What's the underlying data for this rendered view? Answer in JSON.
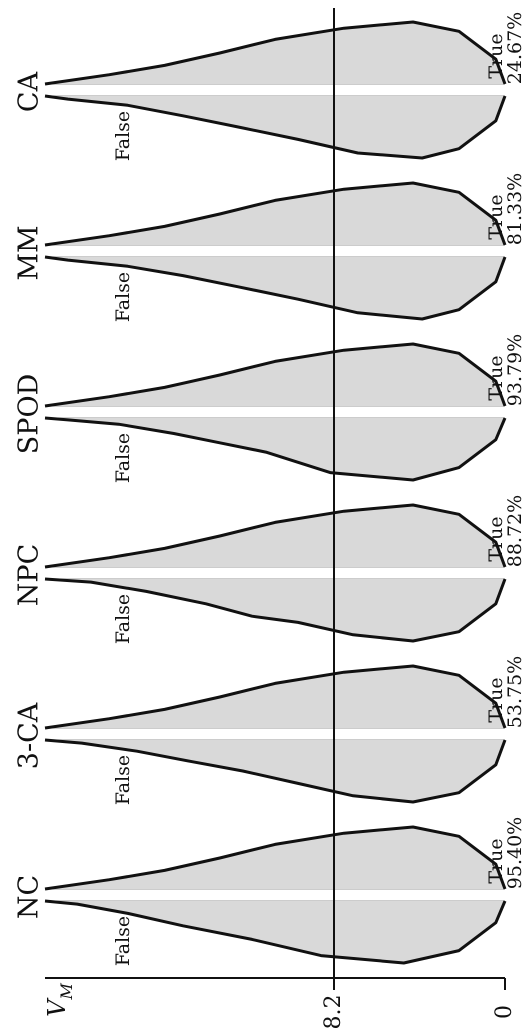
{
  "chart_data": {
    "type": "area",
    "orientation": "rotated-90-ccw",
    "axis_label": "V_M",
    "axis_label_main": "V",
    "axis_label_sub": "M",
    "ticks": [
      "0",
      "8.2"
    ],
    "threshold_label": "8.2",
    "groups": [
      {
        "name": "CA",
        "accuracy": "24.67%",
        "true_label": "True",
        "false_label": "False",
        "true_curve": [
          [
            0.0,
            0.0
          ],
          [
            0.02,
            0.4
          ],
          [
            0.1,
            0.85
          ],
          [
            0.2,
            1.0
          ],
          [
            0.35,
            0.9
          ],
          [
            0.5,
            0.72
          ],
          [
            0.62,
            0.5
          ],
          [
            0.74,
            0.3
          ],
          [
            0.86,
            0.15
          ],
          [
            1.0,
            0.0
          ]
        ],
        "false_curve": [
          [
            0.0,
            0.0
          ],
          [
            0.02,
            0.4
          ],
          [
            0.1,
            0.85
          ],
          [
            0.18,
            1.0
          ],
          [
            0.32,
            0.92
          ],
          [
            0.45,
            0.7
          ],
          [
            0.58,
            0.5
          ],
          [
            0.7,
            0.32
          ],
          [
            0.82,
            0.15
          ],
          [
            0.95,
            0.05
          ],
          [
            1.0,
            0.0
          ]
        ]
      },
      {
        "name": "MM",
        "accuracy": "81.33%",
        "true_label": "True",
        "false_label": "False",
        "true_curve": [
          [
            0.0,
            0.0
          ],
          [
            0.02,
            0.4
          ],
          [
            0.1,
            0.85
          ],
          [
            0.2,
            1.0
          ],
          [
            0.35,
            0.9
          ],
          [
            0.5,
            0.72
          ],
          [
            0.62,
            0.5
          ],
          [
            0.74,
            0.3
          ],
          [
            0.86,
            0.15
          ],
          [
            1.0,
            0.0
          ]
        ],
        "false_curve": [
          [
            0.0,
            0.0
          ],
          [
            0.02,
            0.4
          ],
          [
            0.1,
            0.85
          ],
          [
            0.18,
            1.0
          ],
          [
            0.32,
            0.9
          ],
          [
            0.45,
            0.68
          ],
          [
            0.58,
            0.48
          ],
          [
            0.7,
            0.3
          ],
          [
            0.82,
            0.15
          ],
          [
            0.95,
            0.05
          ],
          [
            1.0,
            0.0
          ]
        ]
      },
      {
        "name": "SPOD",
        "accuracy": "93.79%",
        "true_label": "True",
        "false_label": "False",
        "true_curve": [
          [
            0.0,
            0.0
          ],
          [
            0.02,
            0.4
          ],
          [
            0.1,
            0.85
          ],
          [
            0.2,
            1.0
          ],
          [
            0.35,
            0.9
          ],
          [
            0.5,
            0.72
          ],
          [
            0.62,
            0.5
          ],
          [
            0.74,
            0.3
          ],
          [
            0.86,
            0.15
          ],
          [
            1.0,
            0.0
          ]
        ],
        "false_curve": [
          [
            0.0,
            0.0
          ],
          [
            0.02,
            0.35
          ],
          [
            0.1,
            0.8
          ],
          [
            0.2,
            1.0
          ],
          [
            0.38,
            0.88
          ],
          [
            0.52,
            0.55
          ],
          [
            0.62,
            0.4
          ],
          [
            0.72,
            0.25
          ],
          [
            0.84,
            0.1
          ],
          [
            0.95,
            0.03
          ],
          [
            1.0,
            0.0
          ]
        ]
      },
      {
        "name": "NPC",
        "accuracy": "88.72%",
        "true_label": "True",
        "false_label": "False",
        "true_curve": [
          [
            0.0,
            0.0
          ],
          [
            0.02,
            0.4
          ],
          [
            0.1,
            0.85
          ],
          [
            0.2,
            1.0
          ],
          [
            0.35,
            0.9
          ],
          [
            0.5,
            0.72
          ],
          [
            0.62,
            0.5
          ],
          [
            0.74,
            0.3
          ],
          [
            0.86,
            0.15
          ],
          [
            1.0,
            0.0
          ]
        ],
        "false_curve": [
          [
            0.0,
            0.0
          ],
          [
            0.02,
            0.4
          ],
          [
            0.1,
            0.85
          ],
          [
            0.2,
            1.0
          ],
          [
            0.33,
            0.9
          ],
          [
            0.45,
            0.7
          ],
          [
            0.55,
            0.6
          ],
          [
            0.65,
            0.4
          ],
          [
            0.78,
            0.2
          ],
          [
            0.9,
            0.05
          ],
          [
            1.0,
            0.0
          ]
        ]
      },
      {
        "name": "3-CA",
        "accuracy": "53.75%",
        "true_label": "True",
        "false_label": "False",
        "true_curve": [
          [
            0.0,
            0.0
          ],
          [
            0.02,
            0.4
          ],
          [
            0.1,
            0.85
          ],
          [
            0.2,
            1.0
          ],
          [
            0.35,
            0.9
          ],
          [
            0.5,
            0.72
          ],
          [
            0.62,
            0.5
          ],
          [
            0.74,
            0.3
          ],
          [
            0.86,
            0.15
          ],
          [
            1.0,
            0.0
          ]
        ],
        "false_curve": [
          [
            0.0,
            0.0
          ],
          [
            0.02,
            0.4
          ],
          [
            0.1,
            0.85
          ],
          [
            0.2,
            1.0
          ],
          [
            0.33,
            0.9
          ],
          [
            0.45,
            0.7
          ],
          [
            0.57,
            0.5
          ],
          [
            0.68,
            0.35
          ],
          [
            0.8,
            0.18
          ],
          [
            0.92,
            0.05
          ],
          [
            1.0,
            0.0
          ]
        ]
      },
      {
        "name": "NC",
        "accuracy": "95.40%",
        "true_label": "True",
        "false_label": "False",
        "true_curve": [
          [
            0.0,
            0.0
          ],
          [
            0.02,
            0.4
          ],
          [
            0.1,
            0.85
          ],
          [
            0.2,
            1.0
          ],
          [
            0.35,
            0.9
          ],
          [
            0.5,
            0.72
          ],
          [
            0.62,
            0.5
          ],
          [
            0.74,
            0.3
          ],
          [
            0.86,
            0.15
          ],
          [
            1.0,
            0.0
          ]
        ],
        "false_curve": [
          [
            0.0,
            0.0
          ],
          [
            0.02,
            0.35
          ],
          [
            0.1,
            0.8
          ],
          [
            0.22,
            1.0
          ],
          [
            0.4,
            0.88
          ],
          [
            0.55,
            0.62
          ],
          [
            0.7,
            0.4
          ],
          [
            0.82,
            0.2
          ],
          [
            0.93,
            0.05
          ],
          [
            1.0,
            0.0
          ]
        ]
      }
    ],
    "colors": {
      "fill": "#d9d9d9",
      "stroke": "#111111",
      "baseline": "#9a9a9a"
    }
  }
}
